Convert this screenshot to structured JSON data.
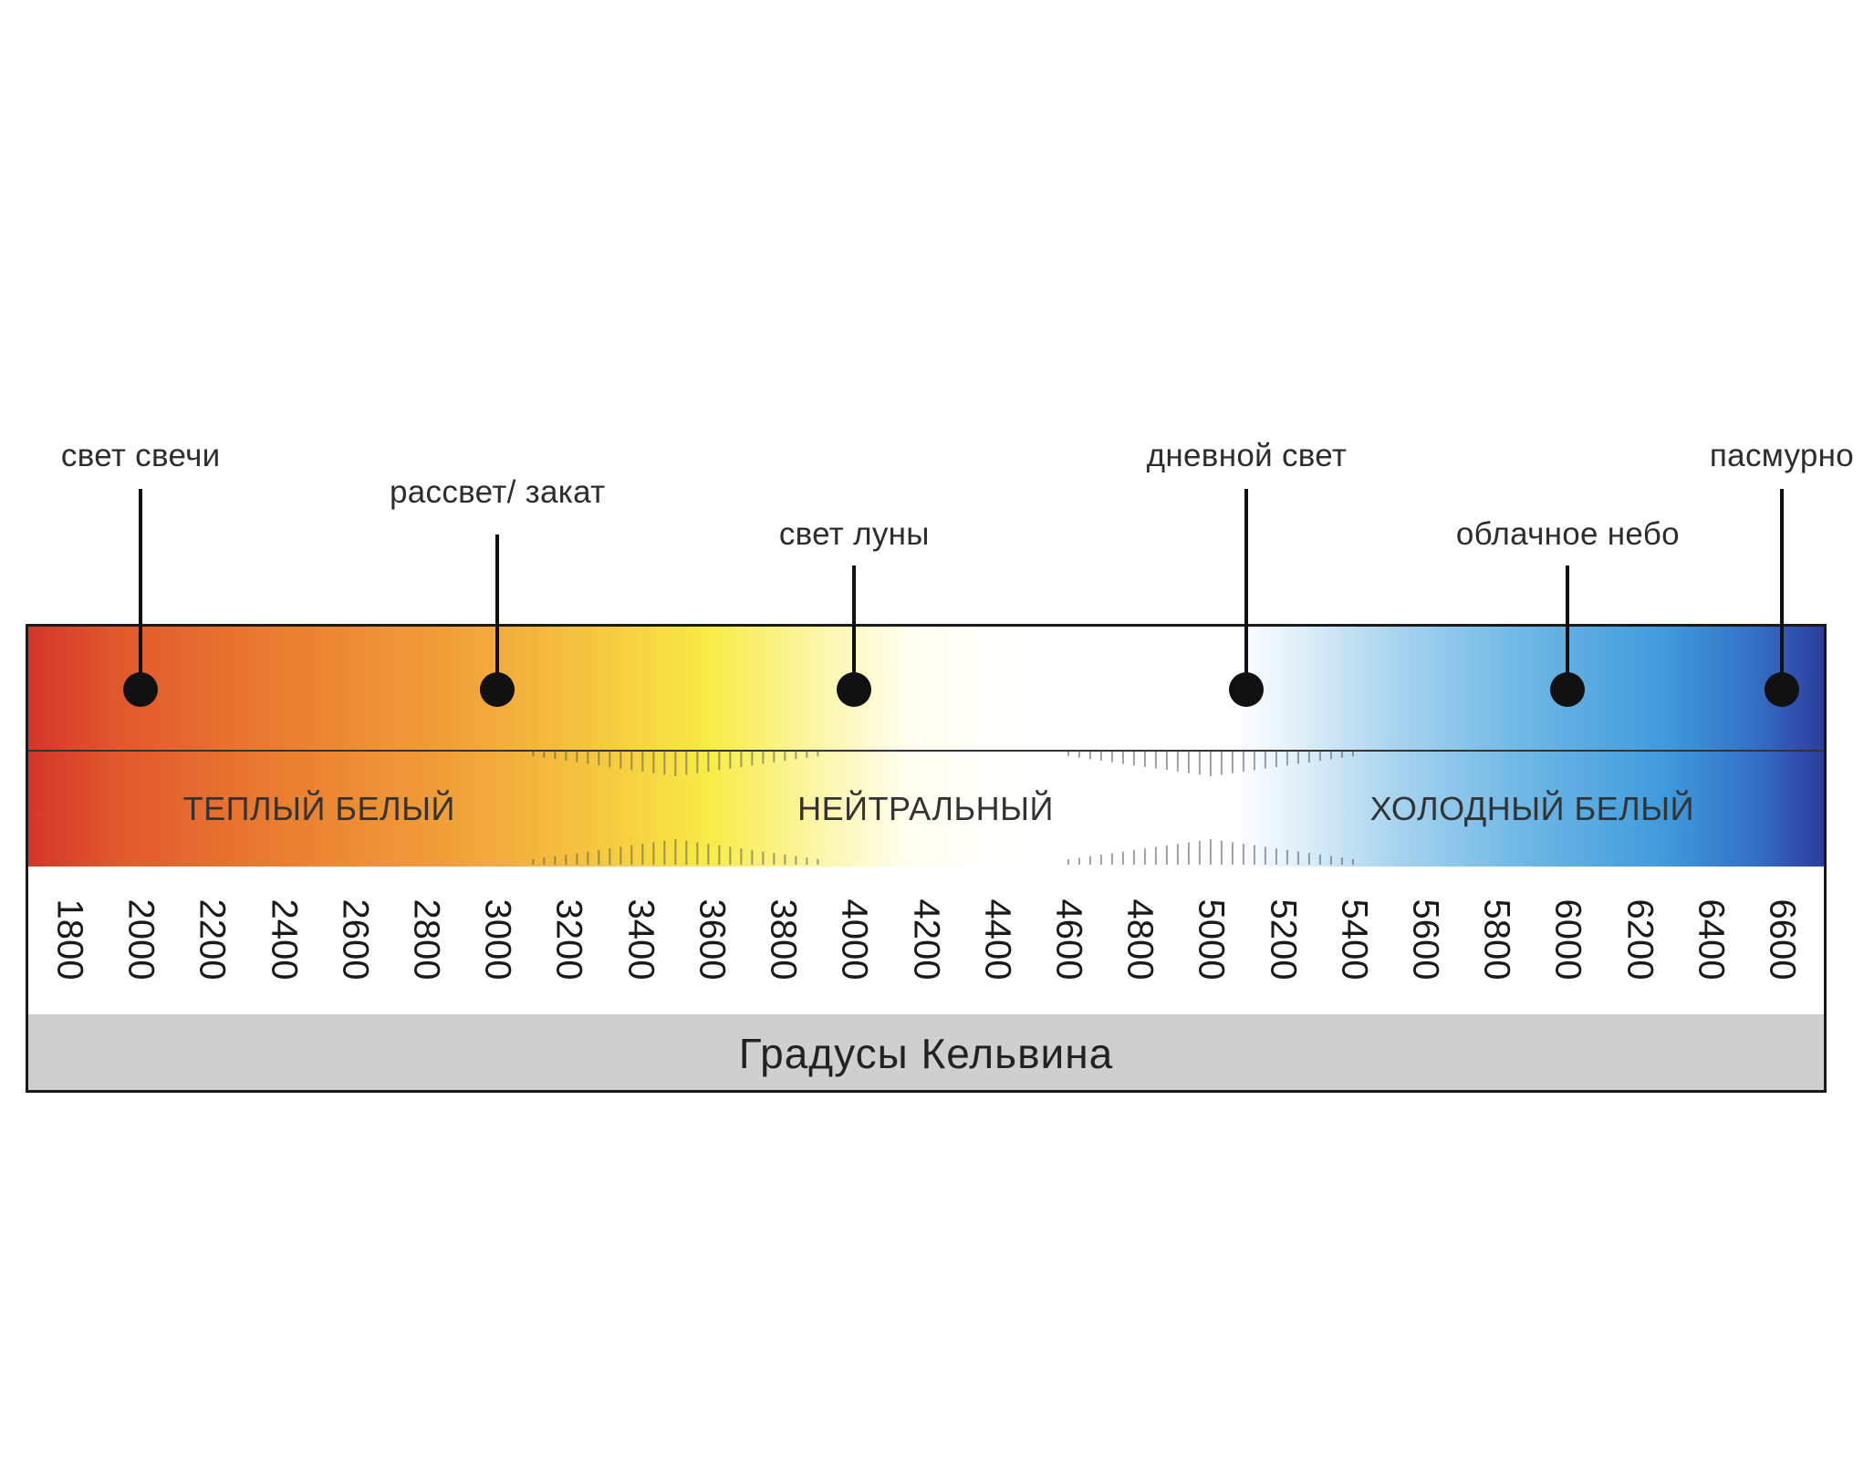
{
  "chart_data": {
    "type": "color-temperature-scale",
    "unit": "K",
    "range": [
      1800,
      6600
    ],
    "ticks": [
      "1800",
      "2000",
      "2200",
      "2400",
      "2600",
      "2800",
      "3000",
      "3200",
      "3400",
      "3600",
      "3800",
      "4000",
      "4200",
      "4400",
      "4600",
      "4800",
      "5000",
      "5200",
      "5400",
      "5600",
      "5800",
      "6000",
      "6200",
      "6400",
      "6600"
    ],
    "markers": [
      {
        "label": "свет свечи",
        "value": 2000
      },
      {
        "label": "рассвет/ закат",
        "value": 3000
      },
      {
        "label": "свет луны",
        "value": 4000
      },
      {
        "label": "дневной свет",
        "value": 5100
      },
      {
        "label": "облачное небо",
        "value": 6000
      },
      {
        "label": "пасмурно",
        "value": 6600
      }
    ],
    "zones": [
      {
        "label": "ТЕПЛЫЙ БЕЛЫЙ",
        "center": 2500
      },
      {
        "label": "НЕЙТРАЛЬНЫЙ",
        "center": 4200
      },
      {
        "label": "ХОЛОДНЫЙ БЕЛЫЙ",
        "center": 5900
      }
    ],
    "axis_title": "Градусы Кельвина",
    "gradient": [
      "#d4342a",
      "#f5c93f",
      "#f8ec46",
      "#ffffff",
      "#6fb8e6",
      "#2c3a9a"
    ]
  }
}
